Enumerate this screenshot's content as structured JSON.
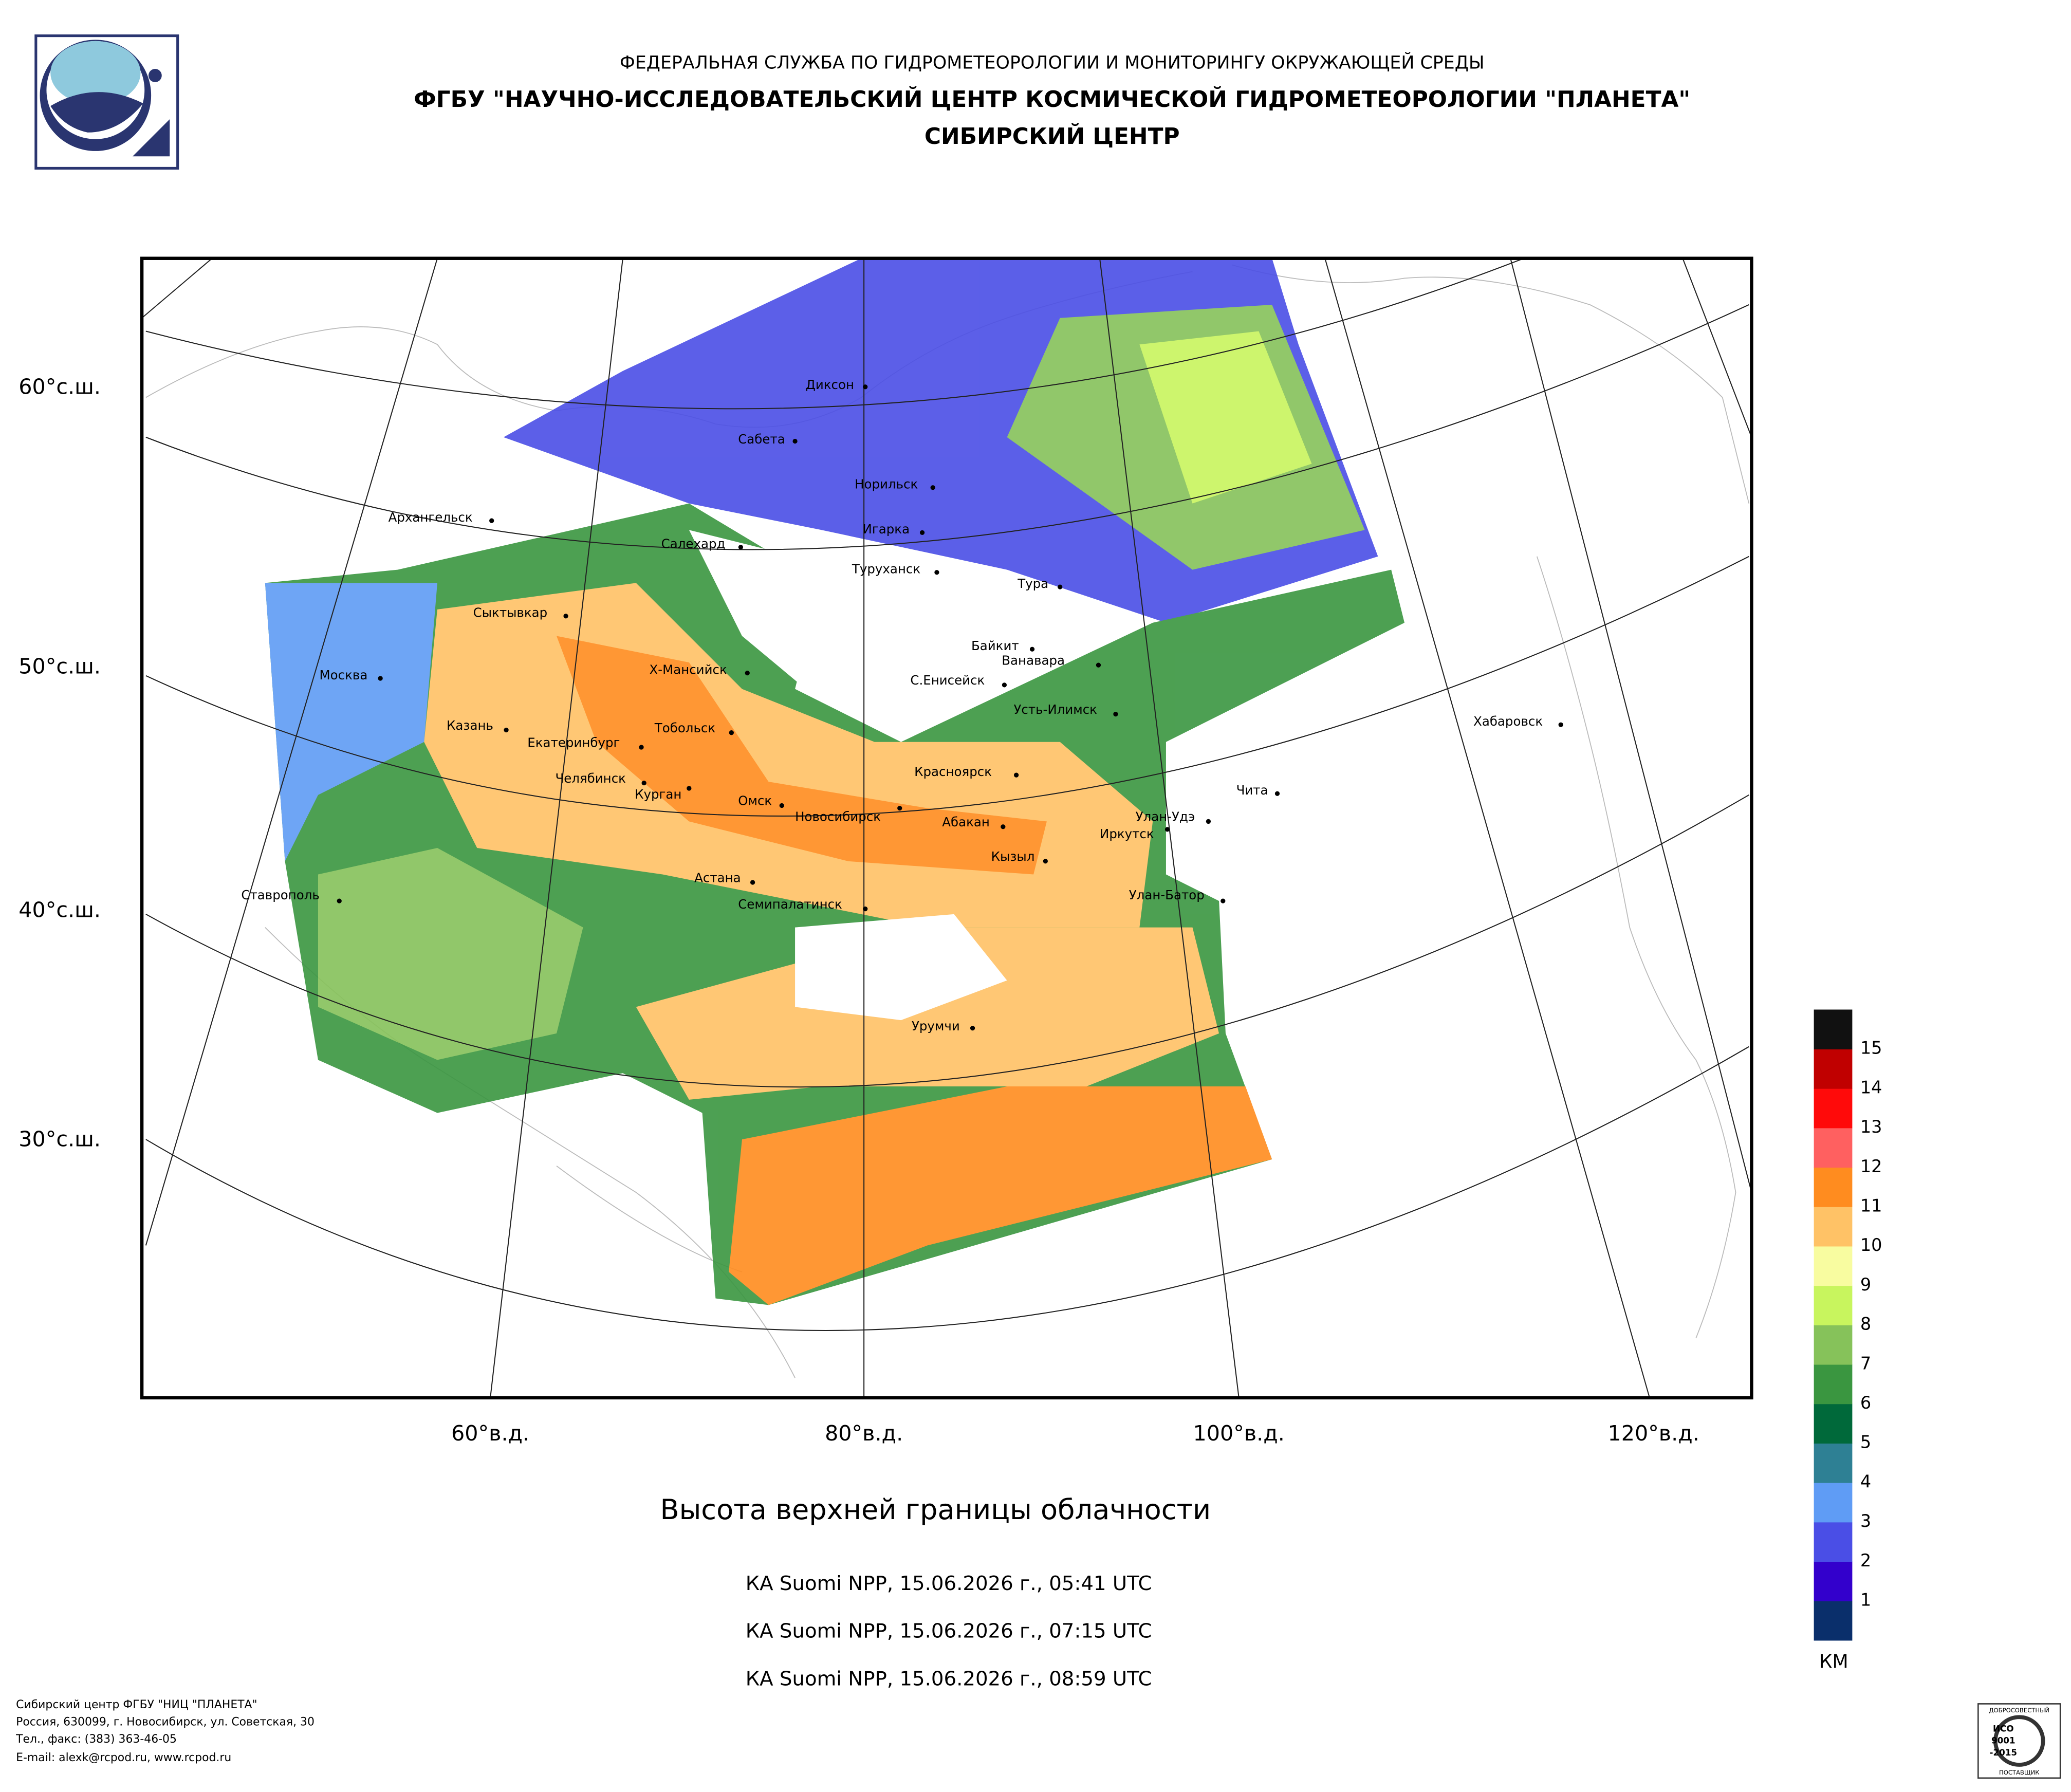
{
  "header": {
    "line1": "ФЕДЕРАЛЬНАЯ СЛУЖБА ПО ГИДРОМЕТЕОРОЛОГИИ И МОНИТОРИНГУ ОКРУЖАЮЩЕЙ СРЕДЫ",
    "line2": "ФГБУ \"НАУЧНО-ИССЛЕДОВАТЕЛЬСКИЙ ЦЕНТР КОСМИЧЕСКОЙ ГИДРОМЕТЕОРОЛОГИИ \"ПЛАНЕТА\"",
    "line3": "СИБИРСКИЙ ЦЕНТР"
  },
  "map": {
    "lat_labels": [
      "60°с.ш.",
      "50°с.ш.",
      "40°с.ш.",
      "30°с.ш."
    ],
    "lon_labels": [
      "60°в.д.",
      "80°в.д.",
      "100°в.д.",
      "120°в.д."
    ],
    "cities": [
      "Диксон",
      "Сабета",
      "Норильск",
      "Архангельск",
      "Игарка",
      "Салехард",
      "Туруханск",
      "Тура",
      "Сыктывкар",
      "Байкит",
      "Ванавара",
      "Х-Мансийск",
      "С.Енисейск",
      "Москва",
      "Усть-Илимск",
      "Хабаровск",
      "Казань",
      "Тобольск",
      "Екатеринбург",
      "Красноярск",
      "Челябинск",
      "Курган",
      "Чита",
      "Омск",
      "Новосибирск",
      "Улан-Удэ",
      "Абакан",
      "Иркутск",
      "Кызыл",
      "Астана",
      "Ставрополь",
      "Улан-Батор",
      "Семипалатинск",
      "Урумчи"
    ]
  },
  "legend": {
    "colors": [
      "#0a2f6b",
      "#3300cc",
      "#4a4ee6",
      "#5f9cf5",
      "#2e8094",
      "#00693a",
      "#3a9640",
      "#86c25a",
      "#c8f55e",
      "#f8fca0",
      "#ffc266",
      "#ff8c1f",
      "#ff6060",
      "#ff0a0a",
      "#c00000",
      "#111111"
    ],
    "labels": [
      1,
      2,
      3,
      4,
      5,
      6,
      7,
      8,
      9,
      10,
      11,
      12,
      13,
      14,
      15
    ],
    "unit": "КМ"
  },
  "product": {
    "title": "Высота верхней границы облачности",
    "passes": [
      "КА Suomi NPP, 15.06.2026 г., 05:41 UTC",
      "КА Suomi NPP, 15.06.2026 г., 07:15 UTC",
      "КА Suomi NPP, 15.06.2026 г., 08:59 UTC"
    ]
  },
  "footer": {
    "lines": [
      "Сибирский центр ФГБУ \"НИЦ \"ПЛАНЕТА\"",
      "Россия, 630099, г. Новосибирск, ул. Советская, 30",
      "Тел., факс: (383) 363-46-05",
      "E-mail: alexk@rcpod.ru, www.rcpod.ru"
    ]
  },
  "badge": {
    "top": "ДОБРОСОВЕСТНЫЙ",
    "iso": "ИСО",
    "num": "9001",
    "year": "-2015",
    "bottom": "ПОСТАВЩИК"
  }
}
